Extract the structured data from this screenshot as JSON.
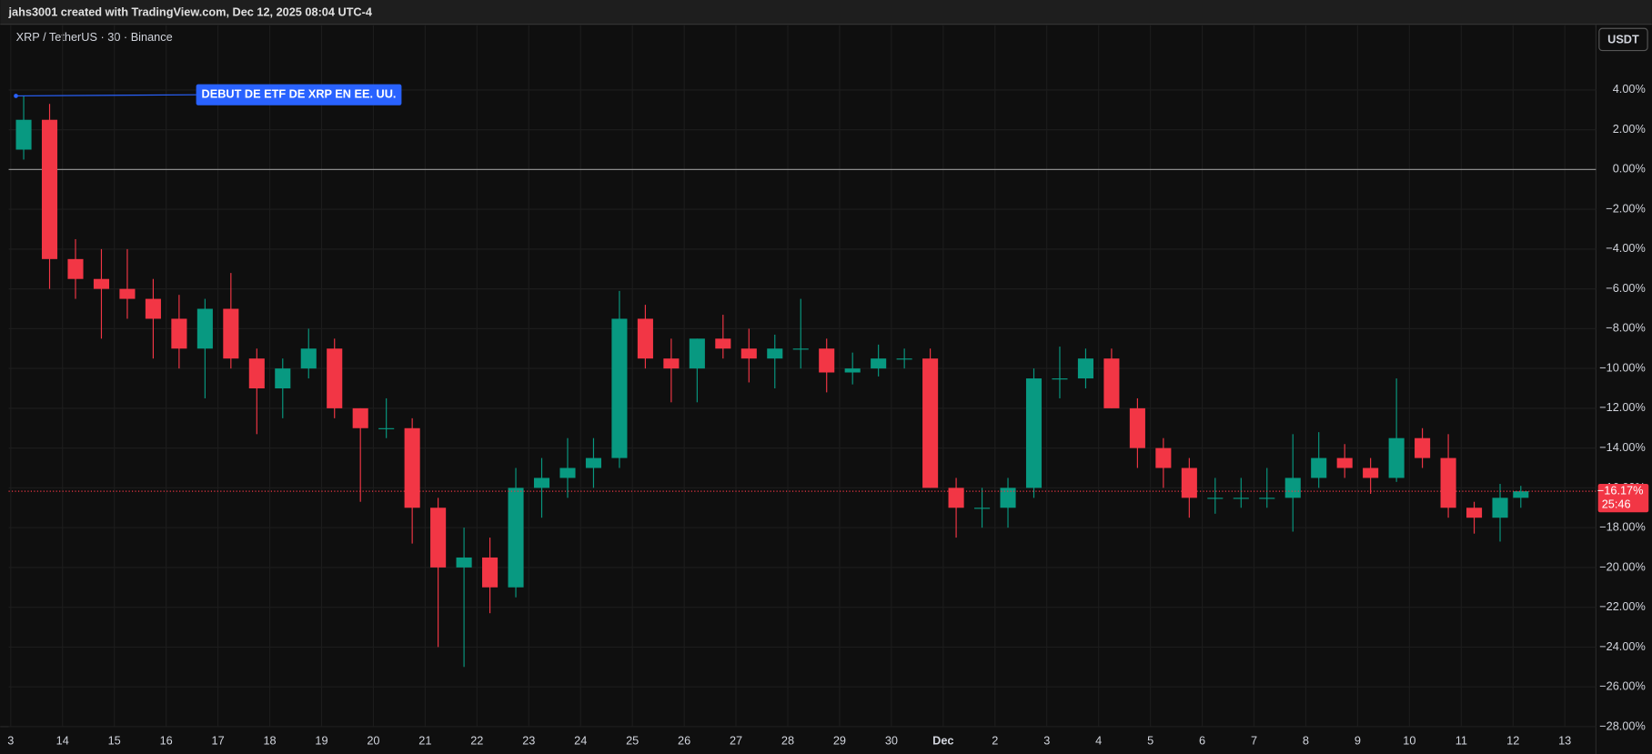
{
  "header": {
    "text": "jahs3001 created with TradingView.com, Dec 12, 2025 08:04 UTC-4"
  },
  "chart_data": {
    "type": "candlestick",
    "subtitle": "XRP / TetherUS · 30 · Binance",
    "currency": "USDT",
    "up_color": "#089981",
    "down_color": "#f23645",
    "grid": true,
    "x": [
      0.25,
      0.75,
      1.25,
      1.75,
      2.25,
      2.75,
      3.25,
      3.75,
      4.25,
      4.75,
      5.25,
      5.75,
      6.25,
      6.75,
      7.25,
      7.75,
      8.25,
      8.75,
      9.25,
      9.75,
      10.25,
      10.75,
      11.25,
      11.75,
      12.25,
      12.75,
      13.25,
      13.75,
      14.25,
      14.75,
      15.25,
      15.75,
      16.25,
      16.75,
      17.25,
      17.75,
      18.25,
      18.75,
      19.25,
      19.75,
      20.25,
      20.75,
      21.25,
      21.75,
      22.25,
      22.75,
      23.25,
      23.75,
      24.25,
      24.75,
      25.25,
      25.75,
      26.25,
      26.75,
      27.25,
      27.75,
      28.25,
      28.75,
      29.15
    ],
    "open": [
      1,
      2.5,
      -4.5,
      -5.5,
      -6,
      -6.5,
      -7.5,
      -9,
      -7,
      -9.5,
      -11,
      -10,
      -9,
      -12,
      -13,
      -13,
      -17,
      -20,
      -19.5,
      -21,
      -16,
      -15.5,
      -15,
      -14.5,
      -7.5,
      -9.5,
      -10,
      -8.5,
      -9,
      -9.5,
      -9,
      -9,
      -10.2,
      -10,
      -9.5,
      -9.5,
      -16,
      -17,
      -17,
      -16,
      -10.5,
      -10.5,
      -9.5,
      -12,
      -14,
      -15,
      -16.5,
      -16.5,
      -16.5,
      -16.5,
      -15.5,
      -14.5,
      -15,
      -15.5,
      -13.5,
      -14.5,
      -17,
      -17.5,
      -16.5
    ],
    "high": [
      3.7,
      3.3,
      -3.5,
      -4,
      -4,
      -5.5,
      -6.3,
      -6.5,
      -5.2,
      -9,
      -9.5,
      -8,
      -8.5,
      -12,
      -11.5,
      -12.5,
      -16.5,
      -18,
      -18.5,
      -15,
      -14.5,
      -13.5,
      -13.5,
      -6.1,
      -6.8,
      -8.5,
      -8.5,
      -7.3,
      -8,
      -8.3,
      -6.5,
      -8.5,
      -9.2,
      -8.8,
      -9,
      -9,
      -15.5,
      -16,
      -15.5,
      -10,
      -8.9,
      -9,
      -9,
      -11.5,
      -13.5,
      -14.5,
      -15.5,
      -15.5,
      -15,
      -13.3,
      -13.2,
      -13.8,
      -14.5,
      -10.5,
      -13,
      -13.3,
      -16.7,
      -15.8,
      -15.9
    ],
    "low": [
      0.5,
      -6,
      -6.5,
      -8.5,
      -7.5,
      -9.5,
      -10,
      -11.5,
      -10,
      -13.3,
      -12.5,
      -10.5,
      -12.5,
      -16.7,
      -13.5,
      -18.8,
      -24,
      -25,
      -22.3,
      -21.5,
      -17.5,
      -16.5,
      -16,
      -15,
      -10,
      -11.7,
      -11.7,
      -9.5,
      -10.7,
      -11,
      -10,
      -11.2,
      -10.8,
      -10.4,
      -10,
      -16,
      -18.5,
      -18,
      -18,
      -16.5,
      -11.5,
      -11,
      -12,
      -15,
      -16,
      -17.5,
      -17.3,
      -17,
      -17,
      -18.2,
      -16,
      -15.5,
      -16.3,
      -15.7,
      -15,
      -17.5,
      -18.3,
      -18.7,
      -17
    ],
    "close": [
      2.5,
      -4.5,
      -5.5,
      -6,
      -6.5,
      -7.5,
      -9,
      -7,
      -9.5,
      -11,
      -10,
      -9,
      -12,
      -13,
      -13,
      -17,
      -20,
      -19.5,
      -21,
      -16,
      -15.5,
      -15,
      -14.5,
      -7.5,
      -9.5,
      -10,
      -8.5,
      -9,
      -9.5,
      -9,
      -9,
      -10.2,
      -10,
      -9.5,
      -9.5,
      -16,
      -17,
      -17,
      -16,
      -10.5,
      -10.5,
      -9.5,
      -12,
      -14,
      -15,
      -16.5,
      -16.5,
      -16.5,
      -16.5,
      -15.5,
      -14.5,
      -15,
      -15.5,
      -13.5,
      -14.5,
      -17,
      -17.5,
      -16.5,
      -16.17
    ],
    "last_label": "−16.17%",
    "countdown": "25:46",
    "annotation": {
      "text": "DEBUT DE ETF DE XRP EN EE. UU.",
      "x": 0.1,
      "y": 3.7
    },
    "xlim": [
      -0.04,
      30.6
    ],
    "ylim": [
      -28,
      7.25
    ],
    "xticks": [
      {
        "value": 0,
        "label": "3"
      },
      {
        "value": 1,
        "label": "14"
      },
      {
        "value": 2,
        "label": "15"
      },
      {
        "value": 3,
        "label": "16"
      },
      {
        "value": 4,
        "label": "17"
      },
      {
        "value": 5,
        "label": "18"
      },
      {
        "value": 6,
        "label": "19"
      },
      {
        "value": 7,
        "label": "20"
      },
      {
        "value": 8,
        "label": "21"
      },
      {
        "value": 9,
        "label": "22"
      },
      {
        "value": 10,
        "label": "23"
      },
      {
        "value": 11,
        "label": "24"
      },
      {
        "value": 12,
        "label": "25"
      },
      {
        "value": 13,
        "label": "26"
      },
      {
        "value": 14,
        "label": "27"
      },
      {
        "value": 15,
        "label": "28"
      },
      {
        "value": 16,
        "label": "29"
      },
      {
        "value": 17,
        "label": "30"
      },
      {
        "value": 18,
        "label": "Dec"
      },
      {
        "value": 19,
        "label": "2"
      },
      {
        "value": 20,
        "label": "3"
      },
      {
        "value": 21,
        "label": "4"
      },
      {
        "value": 22,
        "label": "5"
      },
      {
        "value": 23,
        "label": "6"
      },
      {
        "value": 24,
        "label": "7"
      },
      {
        "value": 25,
        "label": "8"
      },
      {
        "value": 26,
        "label": "9"
      },
      {
        "value": 27,
        "label": "10"
      },
      {
        "value": 28,
        "label": "11"
      },
      {
        "value": 29,
        "label": "12"
      },
      {
        "value": 30,
        "label": "13"
      }
    ],
    "yticks": [
      {
        "value": 4,
        "label": "4.00%"
      },
      {
        "value": 2,
        "label": "2.00%"
      },
      {
        "value": 0,
        "label": "0.00%"
      },
      {
        "value": -2,
        "label": "−2.00%"
      },
      {
        "value": -4,
        "label": "−4.00%"
      },
      {
        "value": -6,
        "label": "−6.00%"
      },
      {
        "value": -8,
        "label": "−8.00%"
      },
      {
        "value": -10,
        "label": "−10.00%"
      },
      {
        "value": -12,
        "label": "−12.00%"
      },
      {
        "value": -14,
        "label": "−14.00%"
      },
      {
        "value": -16,
        "label": "−16.00%"
      },
      {
        "value": -18,
        "label": "−18.00%"
      },
      {
        "value": -20,
        "label": "−20.00%"
      },
      {
        "value": -22,
        "label": "−22.00%"
      },
      {
        "value": -24,
        "label": "−24.00%"
      },
      {
        "value": -26,
        "label": "−26.00%"
      },
      {
        "value": -28,
        "label": "−28.00%"
      }
    ]
  }
}
